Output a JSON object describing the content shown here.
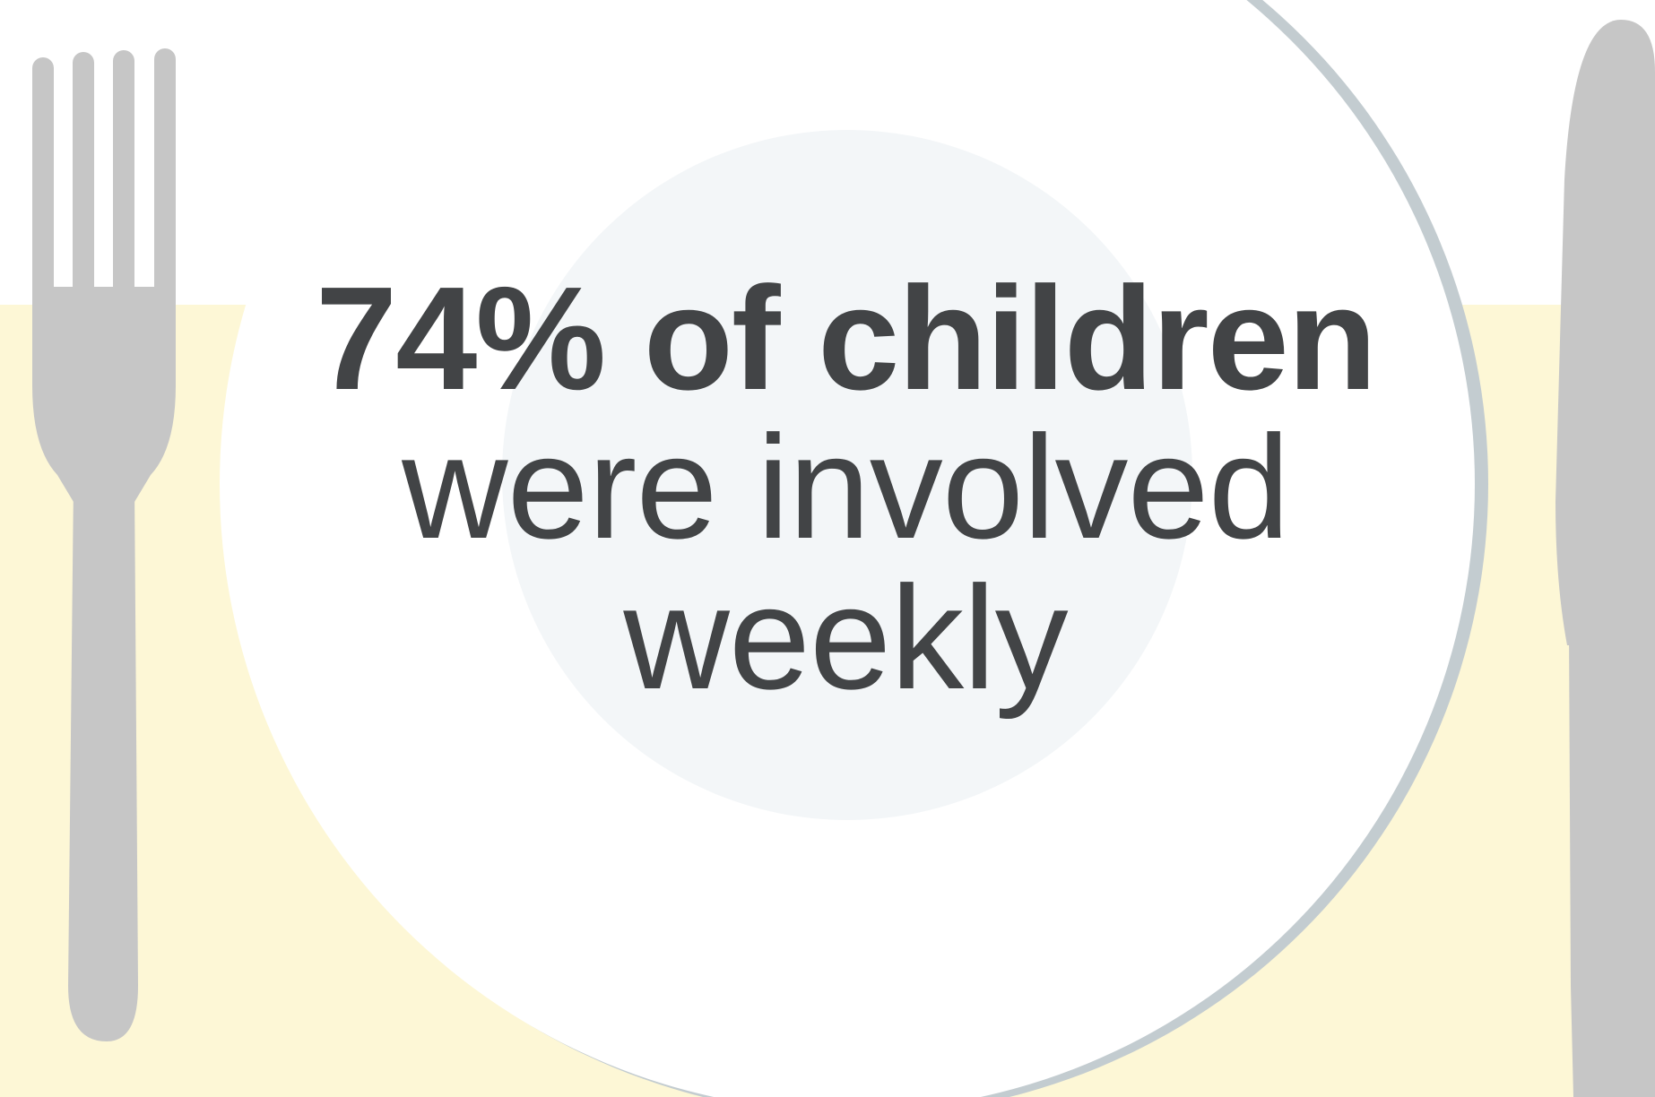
{
  "infographic": {
    "headline": "74% of children",
    "subline_1": "were involved",
    "subline_2": "weekly",
    "percentage_shown": 74
  },
  "colors": {
    "background": "#ffffff",
    "placemat": "#fdf7d6",
    "plate": "#ffffff",
    "plate_rim": "#c3ccd0",
    "plate_center": "#f3f6f8",
    "cutlery": "#c6c6c6",
    "text": "#424446"
  },
  "icons": {
    "left": "fork-icon",
    "right": "knife-icon",
    "center": "plate-icon"
  }
}
